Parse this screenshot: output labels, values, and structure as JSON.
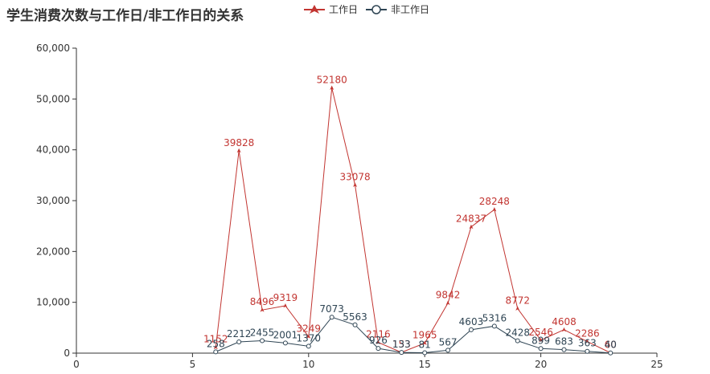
{
  "chart_data": {
    "type": "line",
    "title": "学生消费次数与工作日/非工作日的关系",
    "xlabel": "",
    "ylabel": "",
    "xlim": [
      0,
      25
    ],
    "ylim": [
      0,
      60000
    ],
    "x_ticks": [
      0,
      5,
      10,
      15,
      20,
      25
    ],
    "y_ticks": [
      0,
      10000,
      20000,
      30000,
      40000,
      50000,
      60000
    ],
    "y_tick_labels": [
      "0",
      "10,000",
      "20,000",
      "30,000",
      "40,000",
      "50,000",
      "60,000"
    ],
    "grid": false,
    "legend_position": "top",
    "series": [
      {
        "name": "工作日",
        "color": "#c23531",
        "marker": "arrow",
        "x": [
          6,
          7,
          8,
          9,
          10,
          11,
          12,
          13,
          14,
          15,
          16,
          17,
          18,
          19,
          20,
          21,
          22,
          23
        ],
        "values": [
          1152,
          39828,
          8496,
          9319,
          3249,
          52180,
          33078,
          2116,
          153,
          1965,
          9842,
          24837,
          28248,
          8772,
          2546,
          4608,
          2286,
          60
        ]
      },
      {
        "name": "非工作日",
        "color": "#2f4554",
        "marker": "circle",
        "x": [
          6,
          7,
          8,
          9,
          10,
          11,
          12,
          13,
          14,
          15,
          16,
          17,
          18,
          19,
          20,
          21,
          22,
          23
        ],
        "values": [
          258,
          2212,
          2455,
          2001,
          1370,
          7073,
          5563,
          926,
          133,
          81,
          567,
          4603,
          5316,
          2428,
          899,
          683,
          363,
          40
        ]
      }
    ]
  }
}
